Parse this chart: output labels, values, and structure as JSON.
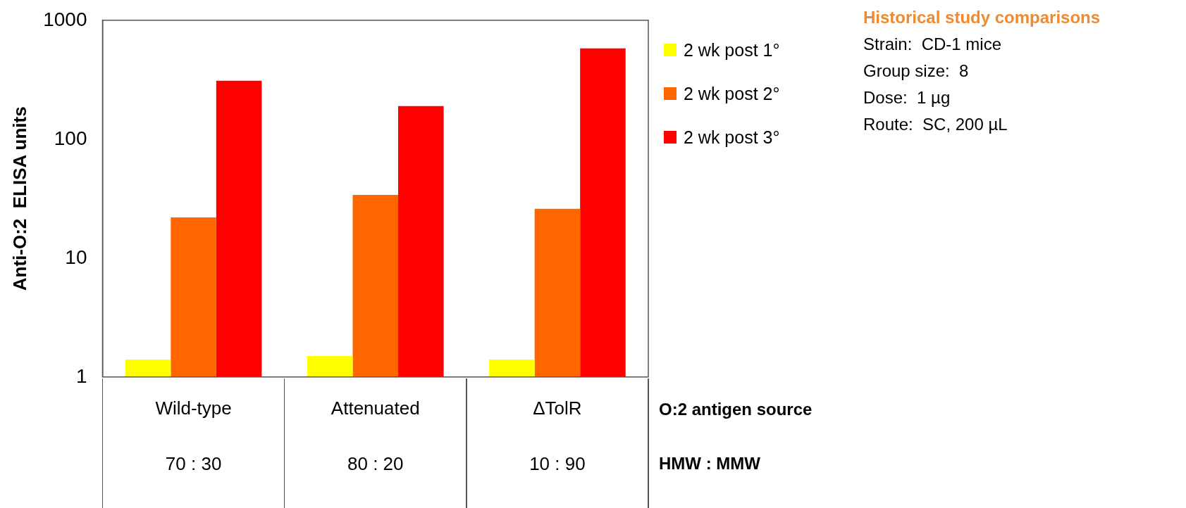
{
  "chart_data": {
    "type": "bar",
    "title": "Historical study comparisons",
    "ylabel": "Anti-O:2  ELISA units",
    "xlabel": "O:2 antigen source",
    "categories": [
      "Wild-type",
      "Attenuated",
      "ΔTolR"
    ],
    "series": [
      {
        "name": "2 wk post 1°",
        "color": "#ffff00",
        "values": [
          1.4,
          1.5,
          1.4
        ]
      },
      {
        "name": "2 wk post 2°",
        "color": "#ff6600",
        "values": [
          22,
          34,
          26
        ]
      },
      {
        "name": "2 wk post 3°",
        "color": "#ff0000",
        "values": [
          310,
          190,
          580
        ]
      }
    ],
    "log": true,
    "ylim": [
      1,
      1000
    ],
    "yticks": [
      1,
      10,
      100,
      1000
    ],
    "grid": false,
    "legend": "top right",
    "annotations": [
      "70 : 30",
      "80 : 20",
      "10 : 90",
      "HMW : MMW",
      "Strain:  CD-1 mice",
      "Group size:  8",
      "Dose:  1 µg",
      "Route:  SC, 200 µL"
    ]
  }
}
